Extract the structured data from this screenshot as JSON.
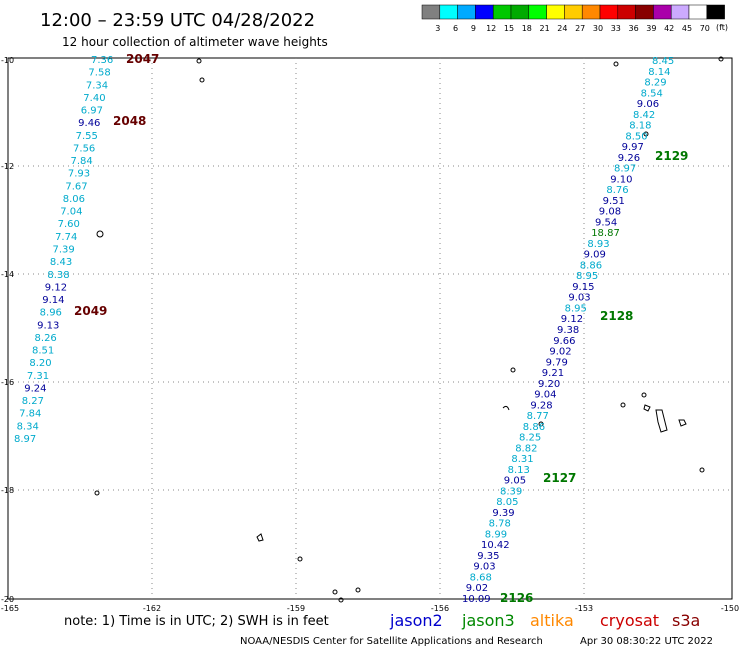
{
  "header": {
    "title": "12:00 – 23:59 UTC 04/28/2022",
    "subtitle": "12 hour collection of altimeter wave heights"
  },
  "legend": {
    "unit": "(ft)",
    "swatches": [
      "#808080",
      "#00ffff",
      "#00aaff",
      "#0000ff",
      "#00c800",
      "#00aa00",
      "#00ff00",
      "#ffff00",
      "#ffcc00",
      "#ff8800",
      "#ff0000",
      "#cc0000",
      "#880000",
      "#aa00aa",
      "#ccaaff",
      "#ffffff",
      "#000000"
    ],
    "labels": [
      "3",
      "6",
      "9",
      "12",
      "15",
      "18",
      "21",
      "24",
      "27",
      "30",
      "33",
      "36",
      "39",
      "42",
      "45",
      "70"
    ]
  },
  "axes": {
    "lat_labels": [
      "-10",
      "-12",
      "-14",
      "-16",
      "-18",
      "-20"
    ],
    "lon_labels": [
      "-165",
      "-162",
      "-159",
      "-156",
      "-153",
      "-150"
    ]
  },
  "colors": {
    "jason2": "#0000cc",
    "jason3": "#008800",
    "altika": "#ff8800",
    "cryosat": "#cc0000",
    "s3a": "#880000",
    "cyan": "#00aacc",
    "navy": "#000099",
    "darkred": "#660000",
    "green": "#007700"
  },
  "left_track": [
    {
      "v": "7.36",
      "c": "cyan"
    },
    {
      "v": "7.58",
      "c": "cyan"
    },
    {
      "v": "7.34",
      "c": "cyan"
    },
    {
      "v": "7.40",
      "c": "cyan"
    },
    {
      "v": "6.97",
      "c": "cyan"
    },
    {
      "v": "9.46",
      "c": "navy"
    },
    {
      "v": "7.55",
      "c": "cyan"
    },
    {
      "v": "7.56",
      "c": "cyan"
    },
    {
      "v": "7.84",
      "c": "cyan"
    },
    {
      "v": "7.93",
      "c": "cyan"
    },
    {
      "v": "7.67",
      "c": "cyan"
    },
    {
      "v": "8.06",
      "c": "cyan"
    },
    {
      "v": "7.04",
      "c": "cyan"
    },
    {
      "v": "7.60",
      "c": "cyan"
    },
    {
      "v": "7.74",
      "c": "cyan"
    },
    {
      "v": "7.39",
      "c": "cyan"
    },
    {
      "v": "8.43",
      "c": "cyan"
    },
    {
      "v": "8.38",
      "c": "cyan"
    },
    {
      "v": "9.12",
      "c": "navy"
    },
    {
      "v": "9.14",
      "c": "navy"
    },
    {
      "v": "8.96",
      "c": "cyan"
    },
    {
      "v": "9.13",
      "c": "navy"
    },
    {
      "v": "8.26",
      "c": "cyan"
    },
    {
      "v": "8.51",
      "c": "cyan"
    },
    {
      "v": "8.20",
      "c": "cyan"
    },
    {
      "v": "7.31",
      "c": "cyan"
    },
    {
      "v": "9.24",
      "c": "navy"
    },
    {
      "v": "8.27",
      "c": "cyan"
    },
    {
      "v": "7.84",
      "c": "cyan"
    },
    {
      "v": "8.34",
      "c": "cyan"
    },
    {
      "v": "8.97",
      "c": "cyan"
    }
  ],
  "left_times": [
    "2047",
    "2048",
    "2049"
  ],
  "right_track": [
    {
      "v": "8.45",
      "c": "cyan"
    },
    {
      "v": "8.14",
      "c": "cyan"
    },
    {
      "v": "8.29",
      "c": "cyan"
    },
    {
      "v": "8.54",
      "c": "cyan"
    },
    {
      "v": "9.06",
      "c": "navy"
    },
    {
      "v": "8.42",
      "c": "cyan"
    },
    {
      "v": "8.18",
      "c": "cyan"
    },
    {
      "v": "8.50",
      "c": "cyan"
    },
    {
      "v": "9.97",
      "c": "navy"
    },
    {
      "v": "9.26",
      "c": "navy"
    },
    {
      "v": "8.97",
      "c": "cyan"
    },
    {
      "v": "9.10",
      "c": "navy"
    },
    {
      "v": "8.76",
      "c": "cyan"
    },
    {
      "v": "9.51",
      "c": "navy"
    },
    {
      "v": "9.08",
      "c": "navy"
    },
    {
      "v": "9.54",
      "c": "navy"
    },
    {
      "v": "18.87",
      "c": "green"
    },
    {
      "v": "8.93",
      "c": "cyan"
    },
    {
      "v": "9.09",
      "c": "navy"
    },
    {
      "v": "8.86",
      "c": "cyan"
    },
    {
      "v": "8.95",
      "c": "cyan"
    },
    {
      "v": "9.15",
      "c": "navy"
    },
    {
      "v": "9.03",
      "c": "navy"
    },
    {
      "v": "8.95",
      "c": "cyan"
    },
    {
      "v": "9.12",
      "c": "navy"
    },
    {
      "v": "9.38",
      "c": "navy"
    },
    {
      "v": "9.66",
      "c": "navy"
    },
    {
      "v": "9.02",
      "c": "navy"
    },
    {
      "v": "9.79",
      "c": "navy"
    },
    {
      "v": "9.21",
      "c": "navy"
    },
    {
      "v": "9.20",
      "c": "navy"
    },
    {
      "v": "9.04",
      "c": "navy"
    },
    {
      "v": "9.28",
      "c": "navy"
    },
    {
      "v": "8.77",
      "c": "cyan"
    },
    {
      "v": "8.86",
      "c": "cyan"
    },
    {
      "v": "8.25",
      "c": "cyan"
    },
    {
      "v": "8.82",
      "c": "cyan"
    },
    {
      "v": "8.31",
      "c": "cyan"
    },
    {
      "v": "8.13",
      "c": "cyan"
    },
    {
      "v": "9.05",
      "c": "navy"
    },
    {
      "v": "8.39",
      "c": "cyan"
    },
    {
      "v": "8.05",
      "c": "cyan"
    },
    {
      "v": "9.39",
      "c": "navy"
    },
    {
      "v": "8.78",
      "c": "cyan"
    },
    {
      "v": "8.99",
      "c": "cyan"
    },
    {
      "v": "10.42",
      "c": "navy"
    },
    {
      "v": "9.35",
      "c": "navy"
    },
    {
      "v": "9.03",
      "c": "navy"
    },
    {
      "v": "8.68",
      "c": "cyan"
    },
    {
      "v": "9.02",
      "c": "navy"
    },
    {
      "v": "10.09",
      "c": "navy"
    }
  ],
  "right_times": [
    "2129",
    "2128",
    "2127",
    "2126"
  ],
  "footer": {
    "note": "note:  1) Time is in UTC;  2) SWH is in feet",
    "satellites": [
      "jason2",
      "jason3",
      "altika",
      "cryosat",
      "s3a"
    ],
    "credit": "NOAA/NESDIS Center for Satellite Applications and Research",
    "timestamp": "Apr 30 08:30:22 UTC 2022"
  }
}
